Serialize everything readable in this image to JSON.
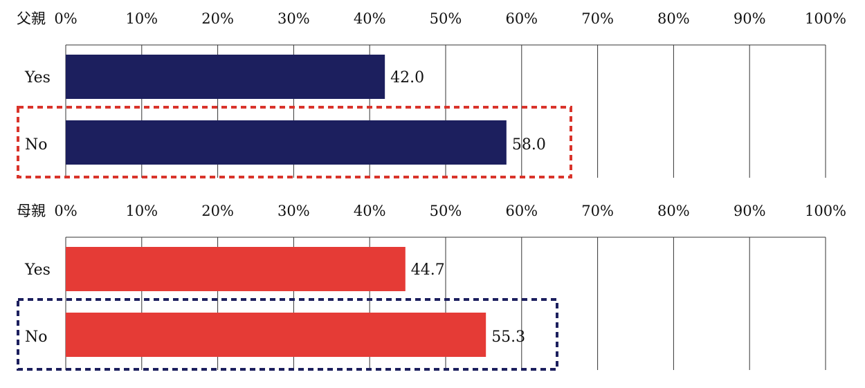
{
  "chart_data": [
    {
      "type": "bar",
      "orientation": "horizontal",
      "title": "父親",
      "categories": [
        "Yes",
        "No"
      ],
      "values": [
        42.0,
        58.0
      ],
      "value_labels": [
        "42.0",
        "58.0"
      ],
      "xlim": [
        0,
        100
      ],
      "ticks": [
        "0%",
        "10%",
        "20%",
        "30%",
        "40%",
        "50%",
        "60%",
        "70%",
        "80%",
        "90%",
        "100%"
      ],
      "bar_color": "#1c1f5e",
      "highlight_category": "No",
      "highlight_color": "#d9342b"
    },
    {
      "type": "bar",
      "orientation": "horizontal",
      "title": "母親",
      "categories": [
        "Yes",
        "No"
      ],
      "values": [
        44.7,
        55.3
      ],
      "value_labels": [
        "44.7",
        "55.3"
      ],
      "xlim": [
        0,
        100
      ],
      "ticks": [
        "0%",
        "10%",
        "20%",
        "30%",
        "40%",
        "50%",
        "60%",
        "70%",
        "80%",
        "90%",
        "100%"
      ],
      "bar_color": "#e53b36",
      "highlight_category": "No",
      "highlight_color": "#1c1f5e"
    }
  ]
}
